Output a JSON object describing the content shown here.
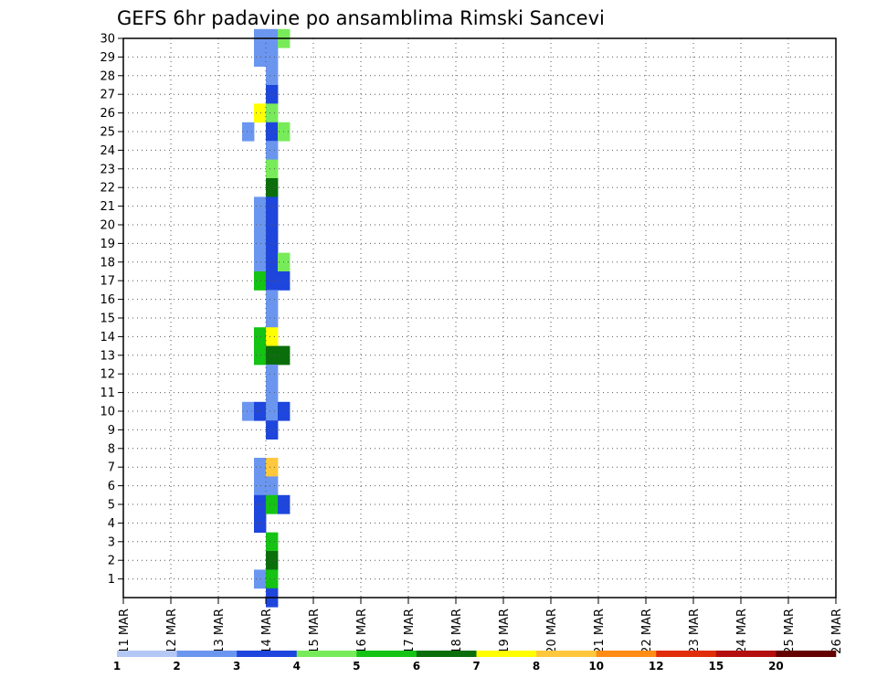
{
  "chart_data": {
    "type": "heatmap",
    "title": "GEFS 6hr padavine po ansamblima Rimski Sancevi",
    "x_ticks": [
      "11 MAR",
      "12 MAR",
      "13 MAR",
      "14 MAR",
      "15 MAR",
      "16 MAR",
      "17 MAR",
      "18 MAR",
      "19 MAR",
      "20 MAR",
      "21 MAR",
      "22 MAR",
      "23 MAR",
      "24 MAR",
      "25 MAR",
      "26 MAR"
    ],
    "y_ticks": [
      "1",
      "2",
      "3",
      "4",
      "5",
      "6",
      "7",
      "8",
      "9",
      "10",
      "11",
      "12",
      "13",
      "14",
      "15",
      "16",
      "17",
      "18",
      "19",
      "20",
      "21",
      "22",
      "23",
      "24",
      "25",
      "26",
      "27",
      "28",
      "29",
      "30"
    ],
    "x_range_days": [
      11,
      26
    ],
    "y_range": [
      0,
      30
    ],
    "steps_per_day": 4,
    "grid": true,
    "colorbar": {
      "labels": [
        "1",
        "2",
        "3",
        "4",
        "5",
        "6",
        "7",
        "8",
        "10",
        "12",
        "15",
        "20"
      ],
      "colors": [
        "#b4c8f5",
        "#6b96f0",
        "#1e46dc",
        "#78eb5a",
        "#14c314",
        "#0a6e0a",
        "#ffff00",
        "#ffc83c",
        "#ff8c14",
        "#e12d0a",
        "#b40f0f",
        "#640000"
      ]
    },
    "cells": [
      {
        "member": 30,
        "t": [
          [
            13.75,
            1
          ],
          [
            14.0,
            1
          ],
          [
            14.25,
            3
          ]
        ]
      },
      {
        "member": 29,
        "t": [
          [
            13.75,
            1
          ],
          [
            14.0,
            1
          ]
        ]
      },
      {
        "member": 28,
        "t": [
          [
            14.0,
            1
          ]
        ]
      },
      {
        "member": 27,
        "t": [
          [
            14.0,
            2
          ]
        ]
      },
      {
        "member": 26,
        "t": [
          [
            13.75,
            6
          ],
          [
            14.0,
            3
          ]
        ]
      },
      {
        "member": 25,
        "t": [
          [
            13.5,
            1
          ],
          [
            14.0,
            2
          ],
          [
            14.25,
            3
          ]
        ]
      },
      {
        "member": 24,
        "t": [
          [
            14.0,
            1
          ]
        ]
      },
      {
        "member": 23,
        "t": [
          [
            14.0,
            3
          ]
        ]
      },
      {
        "member": 22,
        "t": [
          [
            14.0,
            5
          ]
        ]
      },
      {
        "member": 21,
        "t": [
          [
            13.75,
            1
          ],
          [
            14.0,
            2
          ]
        ]
      },
      {
        "member": 20,
        "t": [
          [
            13.75,
            1
          ],
          [
            14.0,
            2
          ]
        ]
      },
      {
        "member": 19,
        "t": [
          [
            13.75,
            1
          ],
          [
            14.0,
            2
          ]
        ]
      },
      {
        "member": 18,
        "t": [
          [
            13.75,
            1
          ],
          [
            14.0,
            2
          ],
          [
            14.25,
            3
          ]
        ]
      },
      {
        "member": 17,
        "t": [
          [
            13.75,
            4
          ],
          [
            14.0,
            2
          ],
          [
            14.25,
            2
          ]
        ]
      },
      {
        "member": 16,
        "t": [
          [
            14.0,
            1
          ]
        ]
      },
      {
        "member": 15,
        "t": [
          [
            14.0,
            1
          ]
        ]
      },
      {
        "member": 14,
        "t": [
          [
            13.75,
            4
          ],
          [
            14.0,
            6
          ]
        ]
      },
      {
        "member": 13,
        "t": [
          [
            13.75,
            4
          ],
          [
            14.0,
            5
          ],
          [
            14.25,
            5
          ]
        ]
      },
      {
        "member": 12,
        "t": [
          [
            14.0,
            1
          ]
        ]
      },
      {
        "member": 11,
        "t": [
          [
            14.0,
            1
          ]
        ]
      },
      {
        "member": 10,
        "t": [
          [
            13.5,
            1
          ],
          [
            13.75,
            2
          ],
          [
            14.0,
            1
          ],
          [
            14.25,
            2
          ]
        ]
      },
      {
        "member": 9,
        "t": [
          [
            14.0,
            2
          ]
        ]
      },
      {
        "member": 7,
        "t": [
          [
            13.75,
            1
          ],
          [
            14.0,
            7
          ]
        ]
      },
      {
        "member": 6,
        "t": [
          [
            13.75,
            1
          ],
          [
            14.0,
            1
          ]
        ]
      },
      {
        "member": 5,
        "t": [
          [
            13.75,
            2
          ],
          [
            14.0,
            4
          ],
          [
            14.25,
            2
          ]
        ]
      },
      {
        "member": 4,
        "t": [
          [
            13.75,
            2
          ]
        ]
      },
      {
        "member": 3,
        "t": [
          [
            14.0,
            4
          ]
        ]
      },
      {
        "member": 2,
        "t": [
          [
            14.0,
            5
          ]
        ]
      },
      {
        "member": 1,
        "t": [
          [
            13.75,
            1
          ],
          [
            14.0,
            4
          ]
        ]
      },
      {
        "member": 0,
        "t": [
          [
            14.0,
            2
          ]
        ]
      }
    ]
  }
}
